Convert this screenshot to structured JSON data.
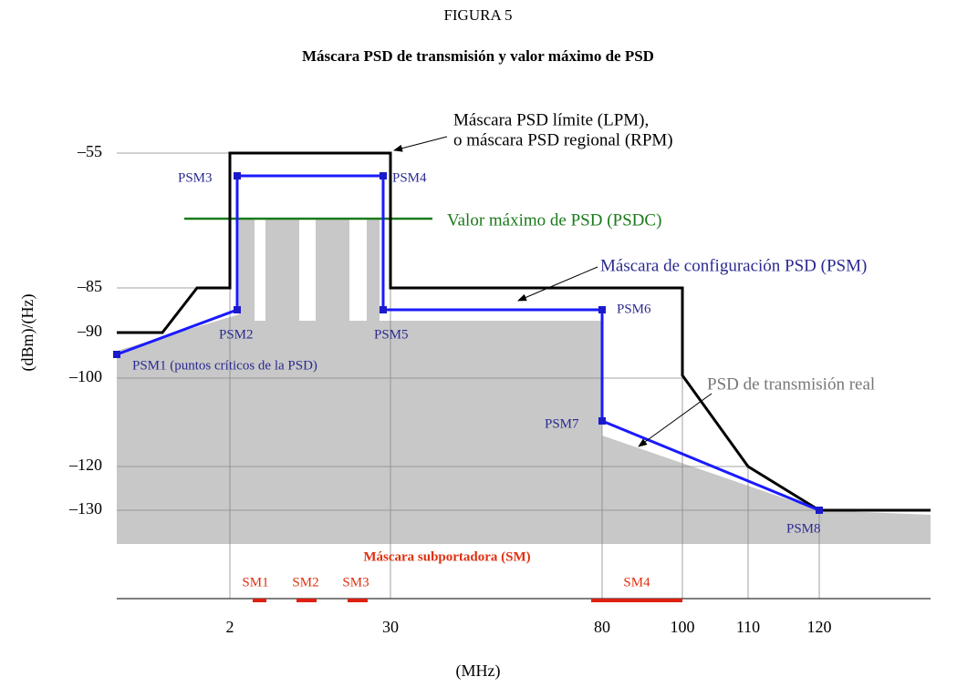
{
  "header": {
    "figure": "FIGURA 5",
    "title": "Máscara PSD de transmisión y valor máximo de PSD"
  },
  "axes": {
    "y_label": "(dBm)/(Hz)",
    "x_label": "(MHz)",
    "y_ticks": [
      "–55",
      "–85",
      "–90",
      "–100",
      "–120",
      "–130"
    ],
    "x_ticks": [
      "2",
      "30",
      "80",
      "100",
      "110",
      "120"
    ]
  },
  "annotations": {
    "lpm_line1": "Máscara PSD límite (LPM),",
    "lpm_line2": "o máscara PSD regional (RPM)",
    "psdc": "Valor máximo de PSD (PSDC)",
    "psm": "Máscara de configuración PSD (PSM)",
    "real": "PSD de transmisión real",
    "sm": "Máscara subportadora (SM)"
  },
  "points": [
    "PSM1 (puntos críticos de la PSD)",
    "PSM2",
    "PSM3",
    "PSM4",
    "PSM5",
    "PSM6",
    "PSM7",
    "PSM8"
  ],
  "subcarriers": [
    "SM1",
    "SM2",
    "SM3",
    "SM4"
  ]
}
